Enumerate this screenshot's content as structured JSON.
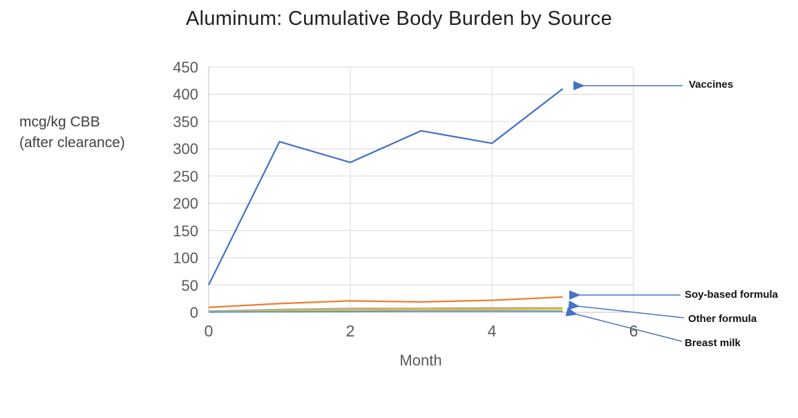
{
  "chart_data": {
    "type": "line",
    "title": "Aluminum: Cumulative Body Burden by Source",
    "ylabel": "mcg/kg CBB (after clearance)",
    "ylabel_lines": [
      "mcg/kg CBB",
      "(after clearance)"
    ],
    "xlabel": "Month",
    "x": [
      0,
      1,
      2,
      3,
      4,
      5
    ],
    "xlim": [
      0,
      6
    ],
    "ylim": [
      0,
      450
    ],
    "xticks": [
      0,
      2,
      4,
      6
    ],
    "yticks": [
      0,
      50,
      100,
      150,
      200,
      250,
      300,
      350,
      400,
      450
    ],
    "grid": true,
    "legend_position": "right-side arrow annotations",
    "series": [
      {
        "name": "Vaccines",
        "color": "#4472C4",
        "values": [
          50,
          313,
          275,
          333,
          310,
          410
        ]
      },
      {
        "name": "Soy-based formula",
        "color": "#ED7D31",
        "values": [
          9,
          16,
          21,
          19,
          22,
          28
        ]
      },
      {
        "name": "Other formula",
        "color": "#A5A5A5",
        "values": [
          2,
          5,
          7,
          7,
          8,
          8
        ]
      },
      {
        "name": "",
        "color": "#FFC000",
        "values": [
          1,
          3,
          4,
          5,
          5,
          6
        ],
        "note": "unlabeled yellow line in bottom cluster"
      },
      {
        "name": "Breast milk",
        "color": "#5B9BD5",
        "values": [
          0.5,
          1,
          1.5,
          2,
          2,
          2
        ]
      }
    ],
    "annotations": [
      {
        "label": "Vaccines",
        "series_index": 0
      },
      {
        "label": "Soy-based formula",
        "series_index": 1
      },
      {
        "label": "Other formula",
        "series_index": 2
      },
      {
        "label": "Breast milk",
        "series_index": 4
      }
    ],
    "colors": {
      "gridline": "#D9D9D9",
      "axis": "#BFBFBF",
      "tick_text": "#595959",
      "axis_label_text": "#404040",
      "title_text": "#1f1f1f",
      "annotation_text": "#111111",
      "arrow": "#4472C4"
    }
  }
}
